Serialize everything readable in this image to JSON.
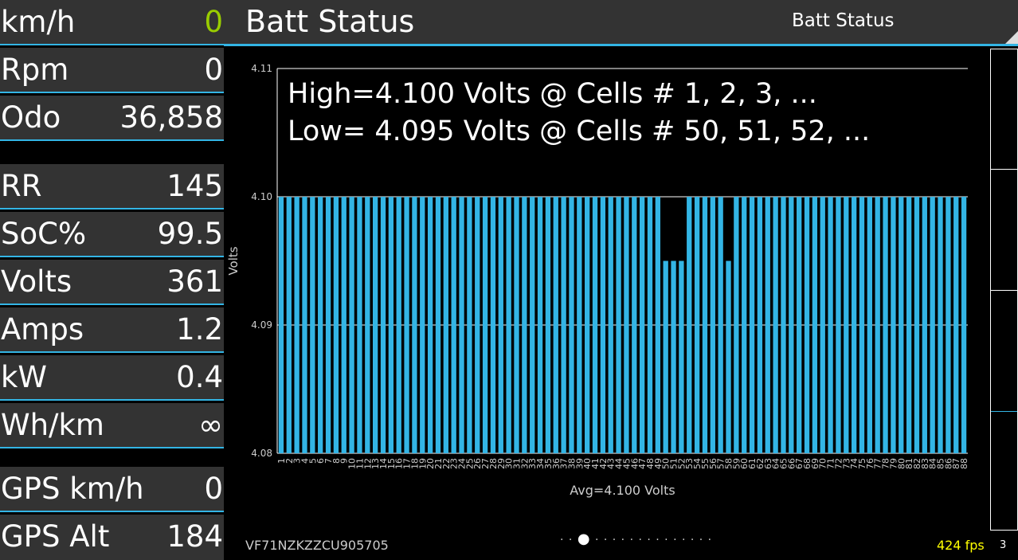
{
  "app": {
    "title": "Batt Status",
    "screen_selector": "Batt Status"
  },
  "metrics": [
    {
      "label": "km/h",
      "value": "0",
      "color": "#99cc00"
    },
    {
      "label": "Rpm",
      "value": "0",
      "color": "#ffffff"
    },
    {
      "label": "Odo",
      "value": "36,858",
      "color": "#ffffff"
    },
    {
      "label": "RR",
      "value": "145",
      "color": "#ffffff"
    },
    {
      "label": "SoC%",
      "value": "99.5",
      "color": "#ffffff"
    },
    {
      "label": "Volts",
      "value": "361",
      "color": "#ffffff"
    },
    {
      "label": "Amps",
      "value": "1.2",
      "color": "#ffffff"
    },
    {
      "label": "kW",
      "value": "0.4",
      "color": "#ffffff"
    },
    {
      "label": "Wh/km",
      "value": "∞",
      "color": "#ffffff"
    },
    {
      "label": "GPS km/h",
      "value": "0",
      "color": "#ffffff"
    },
    {
      "label": "GPS Alt",
      "value": "184",
      "color": "#ffffff"
    }
  ],
  "footer": {
    "vin": "VF71NZKZZCU905705",
    "fps": "424 fps",
    "page_number": "3",
    "page_dots": "· · ● · · · · · · · · · · · · · ·"
  },
  "colors": {
    "accent": "#33b5e5",
    "bar": "#33b5e5",
    "speed": "#99cc00",
    "fps": "#ffff00"
  },
  "chart_data": {
    "type": "bar",
    "title": "",
    "annotations": [
      "High=4.100 Volts @ Cells # 1, 2, 3,  ...",
      "Low= 4.095 Volts @ Cells # 50, 51, 52,  ..."
    ],
    "ylabel": "Volts",
    "xlabel": "Avg=4.100 Volts",
    "ylim": [
      4.08,
      4.11
    ],
    "yticks": [
      "4.08",
      "4.09",
      "4.10",
      "4.11"
    ],
    "categories": [
      "1",
      "2",
      "3",
      "4",
      "5",
      "6",
      "7",
      "8",
      "9",
      "10",
      "11",
      "12",
      "13",
      "14",
      "15",
      "16",
      "17",
      "18",
      "19",
      "20",
      "21",
      "22",
      "23",
      "24",
      "25",
      "26",
      "27",
      "28",
      "29",
      "30",
      "31",
      "32",
      "33",
      "34",
      "35",
      "36",
      "37",
      "38",
      "39",
      "40",
      "41",
      "42",
      "43",
      "44",
      "45",
      "46",
      "47",
      "48",
      "49",
      "50",
      "51",
      "52",
      "53",
      "54",
      "55",
      "56",
      "57",
      "58",
      "59",
      "60",
      "61",
      "62",
      "63",
      "64",
      "65",
      "66",
      "67",
      "68",
      "69",
      "70",
      "71",
      "72",
      "73",
      "74",
      "75",
      "76",
      "77",
      "78",
      "79",
      "80",
      "81",
      "82",
      "83",
      "84",
      "85",
      "86",
      "87",
      "88"
    ],
    "values": [
      4.1,
      4.1,
      4.1,
      4.1,
      4.1,
      4.1,
      4.1,
      4.1,
      4.1,
      4.1,
      4.1,
      4.1,
      4.1,
      4.1,
      4.1,
      4.1,
      4.1,
      4.1,
      4.1,
      4.1,
      4.1,
      4.1,
      4.1,
      4.1,
      4.1,
      4.1,
      4.1,
      4.1,
      4.1,
      4.1,
      4.1,
      4.1,
      4.1,
      4.1,
      4.1,
      4.1,
      4.1,
      4.1,
      4.1,
      4.1,
      4.1,
      4.1,
      4.1,
      4.1,
      4.1,
      4.1,
      4.1,
      4.1,
      4.1,
      4.095,
      4.095,
      4.095,
      4.1,
      4.1,
      4.1,
      4.1,
      4.1,
      4.095,
      4.1,
      4.1,
      4.1,
      4.1,
      4.1,
      4.1,
      4.1,
      4.1,
      4.1,
      4.1,
      4.1,
      4.1,
      4.1,
      4.1,
      4.1,
      4.1,
      4.1,
      4.1,
      4.1,
      4.1,
      4.1,
      4.1,
      4.1,
      4.1,
      4.1,
      4.1,
      4.1,
      4.1,
      4.1,
      4.1
    ],
    "grid": true
  }
}
